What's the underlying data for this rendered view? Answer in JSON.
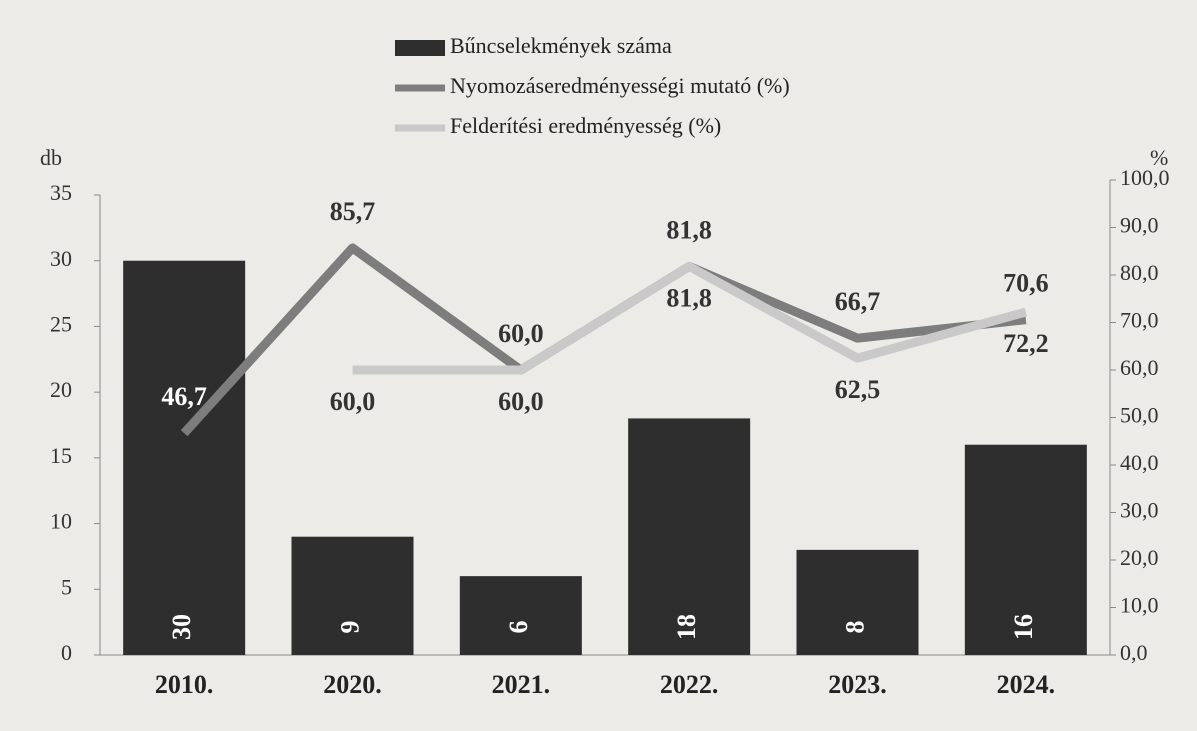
{
  "chart_data": {
    "type": "combo",
    "categories": [
      "2010.",
      "2020.",
      "2021.",
      "2022.",
      "2023.",
      "2024."
    ],
    "y_label": "db",
    "y2_label": "%",
    "ylim": [
      0,
      35
    ],
    "yticks": [
      0,
      5,
      10,
      15,
      20,
      25,
      30,
      35
    ],
    "y2lim": [
      0,
      100
    ],
    "y2ticks": [
      {
        "value": 0,
        "label": "0,0"
      },
      {
        "value": 10,
        "label": "10,0"
      },
      {
        "value": 20,
        "label": "20,0"
      },
      {
        "value": 30,
        "label": "30,0"
      },
      {
        "value": 40,
        "label": "40,0"
      },
      {
        "value": 50,
        "label": "50,0"
      },
      {
        "value": 60,
        "label": "60,0"
      },
      {
        "value": 70,
        "label": "70,0"
      },
      {
        "value": 80,
        "label": "80,0"
      },
      {
        "value": 90,
        "label": "90,0"
      },
      {
        "value": 100,
        "label": "100,0"
      }
    ],
    "series": [
      {
        "name": "Bűncselekmények száma",
        "type": "bar",
        "color": "#2e2e2e",
        "values": [
          30,
          9,
          6,
          18,
          8,
          16
        ]
      },
      {
        "name": "Nyomozáseredményességi mutató (%)",
        "type": "line",
        "axis": "y2",
        "color": "#7d7d7d",
        "values": [
          46.7,
          85.7,
          60.0,
          81.8,
          66.7,
          70.6
        ],
        "value_labels": [
          "46,7",
          "85,7",
          "60,0",
          "81,8",
          "66,7",
          "70,6"
        ]
      },
      {
        "name": "Felderítési eredményesség (%)",
        "type": "line",
        "axis": "y2",
        "color": "#c9c9c9",
        "values": [
          null,
          60.0,
          60.0,
          81.8,
          62.5,
          72.2
        ],
        "value_labels": [
          null,
          "60,0",
          "60,0",
          "81,8",
          "62,5",
          "72,2"
        ]
      }
    ]
  }
}
